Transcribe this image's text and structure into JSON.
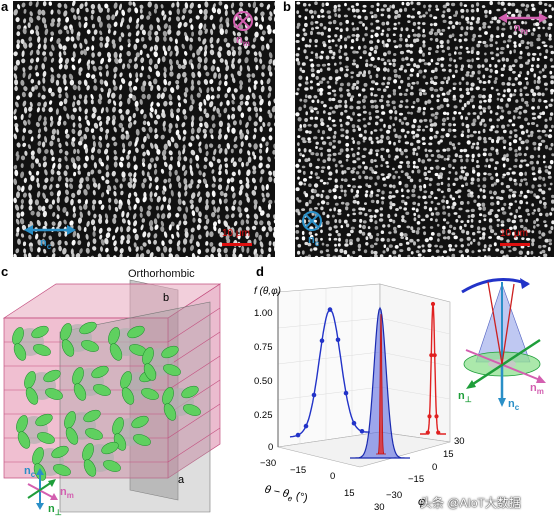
{
  "panels": {
    "a": {
      "label": "a",
      "scale_bar": "10 μm",
      "director_top": "n",
      "director_top_sub": "m",
      "director_bottom": "n",
      "director_bottom_sub": "c"
    },
    "b": {
      "label": "b",
      "scale_bar": "10 μm",
      "director_top": "n",
      "director_top_sub": "m",
      "director_bottom": "n",
      "director_bottom_sub": "c"
    },
    "c": {
      "label": "c",
      "title": "Orthorhombic",
      "plane_b": "b",
      "plane_a": "a",
      "axis_nc": "n",
      "axis_nc_sub": "c",
      "axis_nm": "n",
      "axis_nm_sub": "m",
      "axis_nperp": "n",
      "axis_nperp_sub": "⊥"
    },
    "d": {
      "label": "d",
      "ylabel": "f (θ,φ)",
      "xlabel": "θ − θ",
      "xlabel_sub": "e",
      "xlabel_unit": "(°)",
      "phi_label": "φ",
      "y_ticks": [
        "1.00",
        "0.75",
        "0.50",
        "0.25",
        "0"
      ],
      "x_ticks": [
        "−30",
        "−15",
        "0",
        "15",
        "30"
      ],
      "phi_ticks": [
        "30",
        "15",
        "0",
        "−15",
        "−30"
      ],
      "inset_nm": "n",
      "inset_nm_sub": "m",
      "inset_nc": "n",
      "inset_nc_sub": "c",
      "inset_nperp": "n",
      "inset_nperp_sub": "⊥"
    }
  },
  "watermark": "头条 @AIoT大数据",
  "colors": {
    "nm_pink": "#d35fb0",
    "nc_blue": "#2a8fc7",
    "nperp_green": "#1e9e3a",
    "scale_red": "#e01010",
    "curve_blue": "#2233c8",
    "curve_red": "#e02020"
  }
}
